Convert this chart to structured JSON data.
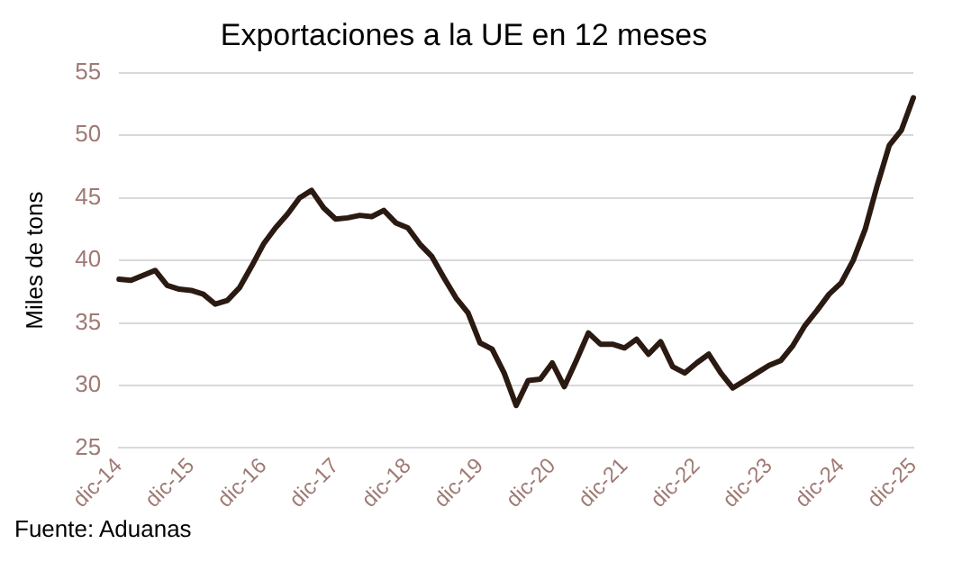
{
  "chart_data": {
    "type": "line",
    "title": "Exportaciones a la UE en 12 meses",
    "ylabel": "Miles de tons",
    "annotations": [
      "Fuente: Aduanas"
    ],
    "categories": [
      "dic-14",
      null,
      null,
      null,
      null,
      null,
      "dic-15",
      null,
      null,
      null,
      null,
      null,
      "dic-16",
      null,
      null,
      null,
      null,
      null,
      "dic-17",
      null,
      null,
      null,
      null,
      null,
      "dic-18",
      null,
      null,
      null,
      null,
      null,
      "dic-19",
      null,
      null,
      null,
      null,
      null,
      "dic-20",
      null,
      null,
      null,
      null,
      null,
      "dic-21",
      null,
      null,
      null,
      null,
      null,
      "dic-22",
      null,
      null,
      null,
      null,
      null,
      "dic-23",
      null,
      null,
      null,
      null,
      null,
      "dic-24",
      null,
      null,
      null,
      null,
      null,
      "dic-25"
    ],
    "series": [
      {
        "color": "#2b1a12",
        "values": [
          38.5,
          38.4,
          38.8,
          39.2,
          38.0,
          37.7,
          37.6,
          37.3,
          36.5,
          36.8,
          37.8,
          39.5,
          41.3,
          42.6,
          43.7,
          45.0,
          45.6,
          44.2,
          43.3,
          43.4,
          43.6,
          43.5,
          44.0,
          43.0,
          42.6,
          41.3,
          40.3,
          38.6,
          37.0,
          35.8,
          33.4,
          32.9,
          31.0,
          28.4,
          30.4,
          30.5,
          31.8,
          29.9,
          32.0,
          34.2,
          33.3,
          33.3,
          33.0,
          33.7,
          32.5,
          33.5,
          31.5,
          31.0,
          31.8,
          32.5,
          31.0,
          29.8,
          30.4,
          31.0,
          31.6,
          32.0,
          33.2,
          34.8,
          36.0,
          37.3,
          38.2,
          40.0,
          42.5,
          46.0,
          49.2,
          50.4,
          53.0
        ]
      }
    ],
    "ylim": [
      25,
      55
    ],
    "yticks": [
      25,
      30,
      35,
      40,
      45,
      50,
      55
    ],
    "grid": "y",
    "legend": false,
    "marker": "none",
    "line_style": "solid"
  }
}
